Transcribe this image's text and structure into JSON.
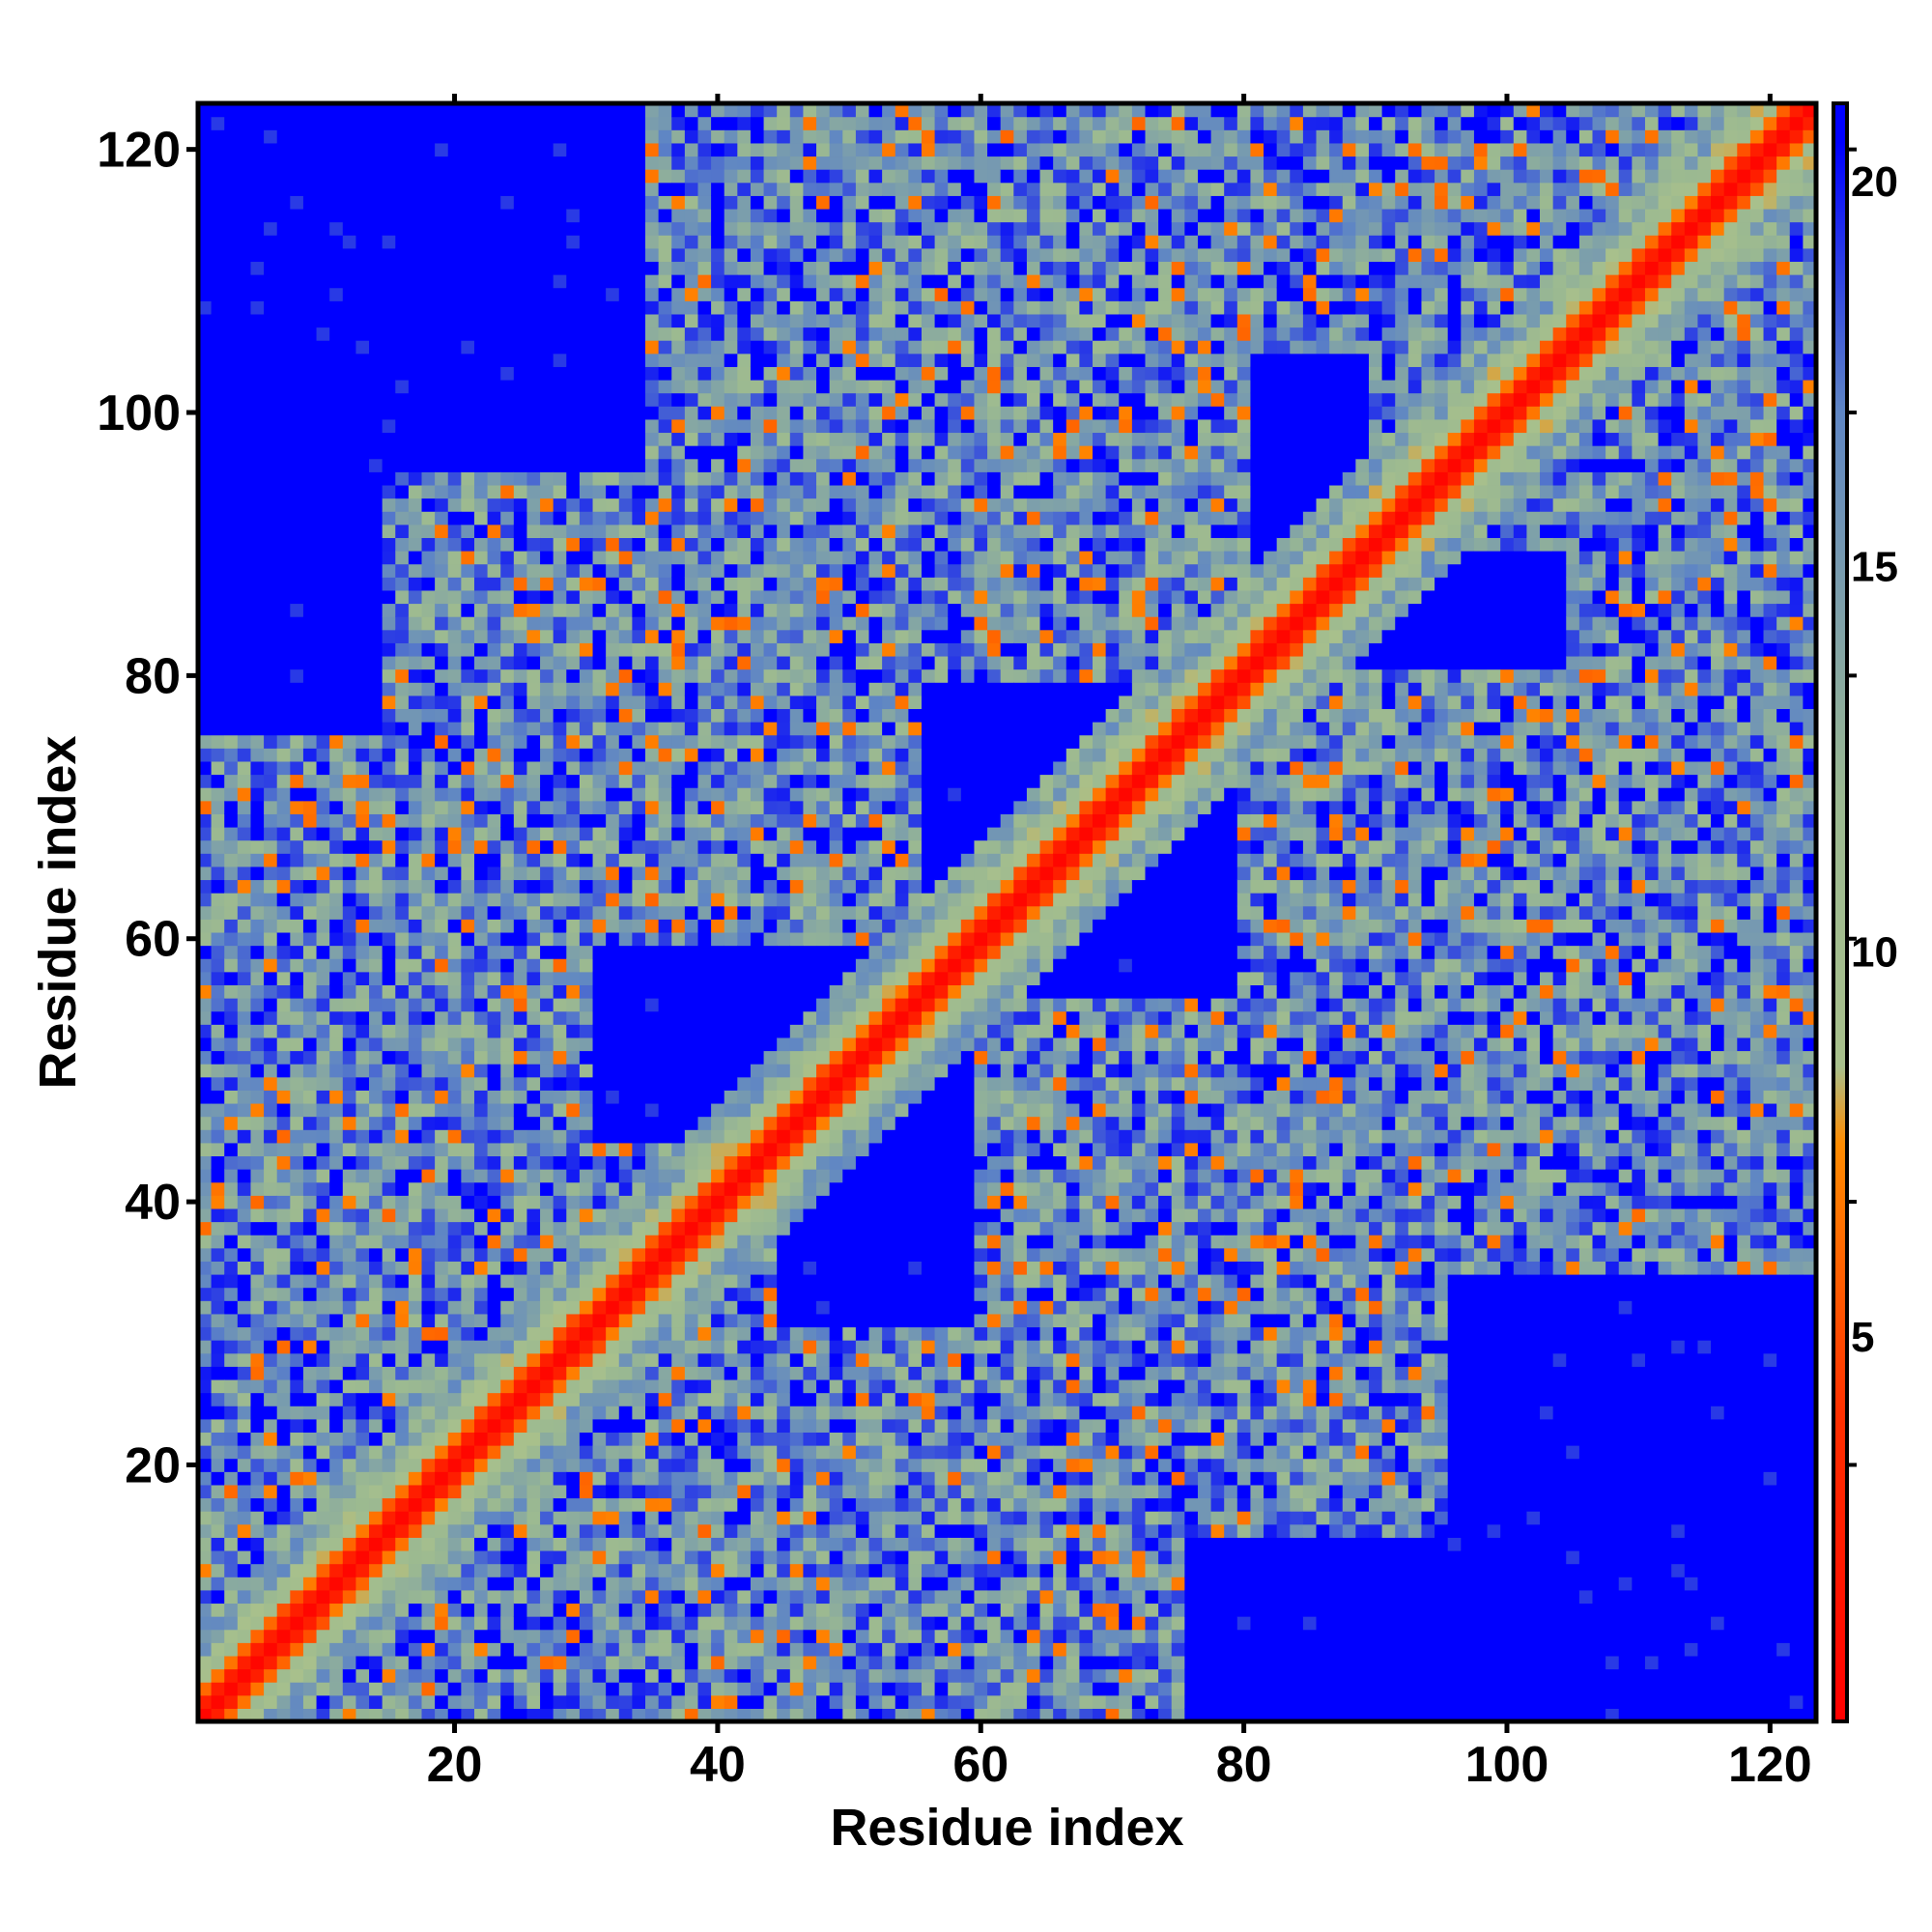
{
  "chart_data": {
    "type": "heatmap",
    "title": "",
    "xlabel": "Residue index",
    "ylabel": "Residue index",
    "n_residues": 123,
    "xlim": [
      1,
      123
    ],
    "ylim": [
      1,
      123
    ],
    "x_ticks": [
      20,
      40,
      60,
      80,
      100,
      120
    ],
    "y_ticks": [
      20,
      40,
      60,
      80,
      100,
      120
    ],
    "value_description": "Pairwise residue distance map (values 0 to ~21, saturated at max)",
    "colorbar": {
      "range": [
        0,
        21
      ],
      "ticks": [
        5,
        10,
        15,
        20
      ],
      "stops": [
        {
          "value": 0,
          "color": "#ff0000"
        },
        {
          "value": 4,
          "color": "#ff3000"
        },
        {
          "value": 7.5,
          "color": "#ff8c00"
        },
        {
          "value": 8.5,
          "color": "#a8c08c"
        },
        {
          "value": 12,
          "color": "#9bb991"
        },
        {
          "value": 17,
          "color": "#5f86c4"
        },
        {
          "value": 20.5,
          "color": "#0000ff"
        },
        {
          "value": 21,
          "color": "#0000ff"
        }
      ]
    },
    "structure": {
      "diagonal_band_halfwidth": 5,
      "block_contacts": [
        {
          "x_range": [
            1,
            44
          ],
          "y_range": [
            1,
            44
          ]
        },
        {
          "x_range": [
            40,
            70
          ],
          "y_range": [
            1,
            30
          ]
        },
        {
          "x_range": [
            60,
            80
          ],
          "y_range": [
            15,
            45
          ]
        },
        {
          "x_range": [
            85,
            125
          ],
          "y_range": [
            45,
            75
          ]
        },
        {
          "x_range": [
            105,
            125
          ],
          "y_range": [
            60,
            100
          ]
        },
        {
          "x_range": [
            1,
            30
          ],
          "y_range": [
            40,
            75
          ]
        },
        {
          "x_range": [
            15,
            55
          ],
          "y_range": [
            60,
            95
          ]
        },
        {
          "x_range": [
            35,
            80
          ],
          "y_range": [
            80,
            123
          ]
        },
        {
          "x_range": [
            60,
            80
          ],
          "y_range": [
            95,
            123
          ]
        },
        {
          "x_range": [
            90,
            123
          ],
          "y_range": [
            90,
            123
          ]
        }
      ]
    }
  }
}
